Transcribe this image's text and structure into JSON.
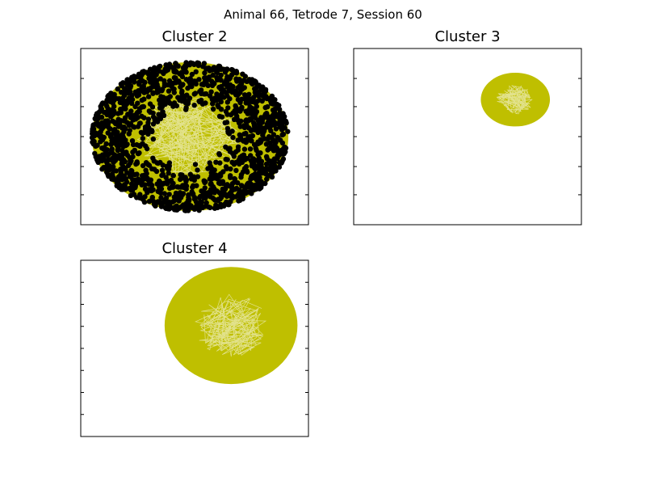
{
  "suptitle": "Animal 66, Tetrode 7, Session 60",
  "colors": {
    "trajectory": "#bfbf00",
    "spike": "#000000",
    "frame": "#000000"
  },
  "chart_data": [
    {
      "type": "scatter",
      "title": "Cluster 2",
      "xlabel": "",
      "ylabel": "",
      "xlim": [
        0,
        1
      ],
      "ylim": [
        0,
        1
      ],
      "ticks_labeled": false,
      "trajectory": {
        "center": [
          0.48,
          0.5
        ],
        "rx": 0.43,
        "ry": 0.42
      },
      "spike_count_estimate": 1500,
      "grid": false
    },
    {
      "type": "scatter",
      "title": "Cluster 3",
      "xlabel": "",
      "ylabel": "",
      "xlim": [
        0,
        1
      ],
      "ylim": [
        0,
        1
      ],
      "ticks_labeled": false,
      "trajectory": {
        "center": [
          0.71,
          0.71
        ],
        "rx": 0.15,
        "ry": 0.15
      },
      "spike_count_estimate": 0,
      "grid": false
    },
    {
      "type": "scatter",
      "title": "Cluster 4",
      "xlabel": "",
      "ylabel": "",
      "xlim": [
        0,
        1
      ],
      "ylim": [
        0,
        1
      ],
      "ticks_labeled": false,
      "trajectory": {
        "center": [
          0.66,
          0.63
        ],
        "rx": 0.29,
        "ry": 0.33
      },
      "spike_count_estimate": 0,
      "grid": false
    }
  ]
}
